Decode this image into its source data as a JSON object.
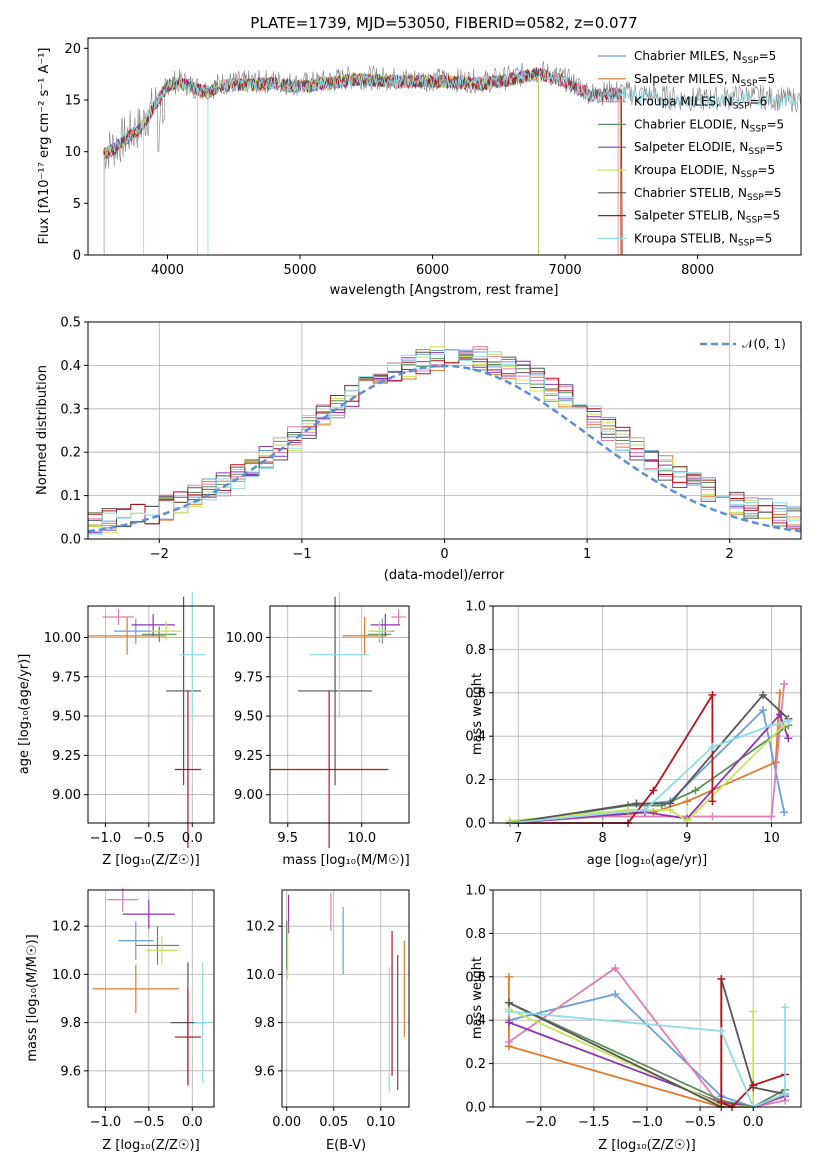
{
  "colors": {
    "chabrier_miles": "#6a9fd8",
    "salpeter_miles": "#e07a2a",
    "kroupa_miles": "#e17cb5",
    "chabrier_elodie": "#5a8f5a",
    "salpeter_elodie": "#8e35b0",
    "kroupa_elodie": "#c5e45a",
    "chabrier_stelib": "#555555",
    "salpeter_stelib": "#b3141c",
    "kroupa_stelib": "#8fdce8",
    "spectrum_grey": "#808080",
    "normal_curve": "#5b8fd6"
  },
  "chart_data": [
    {
      "type": "line",
      "title": "PLATE=1739, MJD=53050, FIBERID=0582, z=0.077",
      "xlabel": "wavelength [Angstrom, rest frame]",
      "ylabel": "Flux [fλ10⁻¹⁷ erg cm⁻² s⁻¹ A⁻¹]",
      "xlim": [
        3400,
        8780
      ],
      "ylim": [
        0,
        21
      ],
      "xticks": [
        "4000",
        "5000",
        "6000",
        "7000",
        "8000"
      ],
      "yticks": [
        "0",
        "5",
        "10",
        "15",
        "20"
      ],
      "legend_position": "right",
      "series": [
        {
          "name": "Chabrier MILES, N_SSP=5"
        },
        {
          "name": "Salpeter MILES, N_SSP=5"
        },
        {
          "name": "Kroupa MILES, N_SSP=6"
        },
        {
          "name": "Chabrier ELODIE, N_SSP=5"
        },
        {
          "name": "Salpeter ELODIE, N_SSP=5"
        },
        {
          "name": "Kroupa ELODIE, N_SSP=5"
        },
        {
          "name": "Chabrier STELIB, N_SSP=5"
        },
        {
          "name": "Salpeter STELIB, N_SSP=5"
        },
        {
          "name": "Kroupa STELIB, N_SSP=5"
        }
      ],
      "continuum": {
        "x": [
          3500,
          3600,
          3700,
          3800,
          3900,
          4000,
          4100,
          4200,
          4300,
          4400,
          4600,
          4800,
          5000,
          5200,
          5400,
          5600,
          5800,
          6000,
          6200,
          6400,
          6600,
          6800,
          7000,
          7200,
          7400,
          7600,
          7800,
          8000,
          8200,
          8400,
          8600,
          8780
        ],
        "y": [
          9.9,
          10.5,
          11.6,
          12.5,
          14.5,
          16.6,
          16.8,
          16.3,
          16.0,
          16.6,
          16.7,
          16.8,
          16.5,
          16.8,
          17.2,
          17.1,
          17.0,
          17.0,
          16.9,
          16.8,
          17.2,
          17.8,
          17.0,
          15.6,
          15.8,
          15.5,
          15.2,
          15.0,
          15.2,
          15.4,
          15.1,
          15.0
        ]
      }
    },
    {
      "type": "line",
      "xlabel": "(data-model)/error",
      "ylabel": "Normed distribution",
      "xlim": [
        -2.5,
        2.5
      ],
      "ylim": [
        0,
        0.5
      ],
      "xticks": [
        "−2",
        "−1",
        "0",
        "1",
        "2"
      ],
      "yticks": [
        "0.0",
        "0.1",
        "0.2",
        "0.3",
        "0.4",
        "0.5"
      ],
      "legend": "𝒩(0, 1)",
      "legend_position": "top-right",
      "bin_width": 0.1,
      "histogram_center": 0.1,
      "histogram_width": 1.02,
      "histogram_floor": 0.02
    },
    {
      "type": "scatter",
      "xlabel": "Z [log₁₀(Z/Z☉)]",
      "ylabel": "age  [log₁₀(age/yr)]",
      "xlim": [
        -1.2,
        0.25
      ],
      "ylim": [
        8.82,
        10.2
      ],
      "xticks": [
        "−1.0",
        "−0.5",
        "0.0"
      ],
      "yticks": [
        "9.00",
        "9.25",
        "9.50",
        "9.75",
        "10.00"
      ],
      "points": [
        {
          "color": "chabrier_miles",
          "x": -0.65,
          "y": 10.04,
          "xerr": 0.25,
          "yerr": 0.08
        },
        {
          "color": "salpeter_miles",
          "x": -0.75,
          "y": 10.01,
          "xerr": 0.45,
          "yerr": 0.12
        },
        {
          "color": "kroupa_miles",
          "x": -0.85,
          "y": 10.13,
          "xerr": 0.18,
          "yerr": 0.05
        },
        {
          "color": "chabrier_elodie",
          "x": -0.38,
          "y": 10.02,
          "xerr": 0.2,
          "yerr": 0.05
        },
        {
          "color": "salpeter_elodie",
          "x": -0.45,
          "y": 10.08,
          "xerr": 0.25,
          "yerr": 0.07
        },
        {
          "color": "kroupa_elodie",
          "x": -0.3,
          "y": 10.04,
          "xerr": 0.18,
          "yerr": 0.06
        },
        {
          "color": "chabrier_stelib",
          "x": -0.1,
          "y": 9.66,
          "xerr": 0.2,
          "yerr": 0.6
        },
        {
          "color": "salpeter_stelib",
          "x": -0.05,
          "y": 9.16,
          "xerr": 0.15,
          "yerr": 0.5
        },
        {
          "color": "kroupa_stelib",
          "x": 0.0,
          "y": 9.89,
          "xerr": 0.15,
          "yerr": 0.4
        }
      ]
    },
    {
      "type": "scatter",
      "xlabel": "mass [log₁₀(M/M☉)]",
      "xlim": [
        9.38,
        10.32
      ],
      "ylim": [
        8.82,
        10.2
      ],
      "xticks": [
        "9.5",
        "10.0"
      ],
      "yticks": [
        "9.00",
        "9.25",
        "9.50",
        "9.75",
        "10.00"
      ],
      "points": [
        {
          "color": "chabrier_miles",
          "x": 10.14,
          "y": 10.04,
          "xerr": 0.08,
          "yerr": 0.08
        },
        {
          "color": "salpeter_miles",
          "x": 10.02,
          "y": 10.01,
          "xerr": 0.15,
          "yerr": 0.12
        },
        {
          "color": "kroupa_miles",
          "x": 10.25,
          "y": 10.13,
          "xerr": 0.05,
          "yerr": 0.05
        },
        {
          "color": "chabrier_elodie",
          "x": 10.12,
          "y": 10.02,
          "xerr": 0.08,
          "yerr": 0.05
        },
        {
          "color": "salpeter_elodie",
          "x": 10.16,
          "y": 10.08,
          "xerr": 0.1,
          "yerr": 0.07
        },
        {
          "color": "kroupa_elodie",
          "x": 10.12,
          "y": 10.04,
          "xerr": 0.08,
          "yerr": 0.06
        },
        {
          "color": "chabrier_stelib",
          "x": 9.82,
          "y": 9.66,
          "xerr": 0.25,
          "yerr": 0.6
        },
        {
          "color": "salpeter_stelib",
          "x": 9.78,
          "y": 9.16,
          "xerr": 0.4,
          "yerr": 0.5
        },
        {
          "color": "kroupa_stelib",
          "x": 9.85,
          "y": 9.89,
          "xerr": 0.2,
          "yerr": 0.4
        }
      ]
    },
    {
      "type": "line",
      "xlabel": "age  [log₁₀(age/yr)]",
      "ylabel": "mass weight",
      "xlim": [
        6.7,
        10.35
      ],
      "ylim": [
        0,
        1
      ],
      "xticks": [
        "7",
        "8",
        "9",
        "10"
      ],
      "yticks": [
        "0.0",
        "0.2",
        "0.4",
        "0.6",
        "0.8",
        "1.0"
      ],
      "series": [
        {
          "color": "chabrier_miles",
          "x": [
            6.9,
            8.3,
            8.8,
            9.9,
            10.15
          ],
          "y": [
            0.0,
            0.08,
            0.1,
            0.52,
            0.05
          ]
        },
        {
          "color": "salpeter_miles",
          "x": [
            6.9,
            8.6,
            9.0,
            10.05,
            10.1
          ],
          "y": [
            0.0,
            0.05,
            0.1,
            0.28,
            0.6
          ]
        },
        {
          "color": "kroupa_miles",
          "x": [
            6.9,
            8.0,
            9.3,
            10.0,
            10.15
          ],
          "y": [
            0.0,
            0.03,
            0.03,
            0.03,
            0.64
          ]
        },
        {
          "color": "chabrier_elodie",
          "x": [
            6.9,
            8.3,
            8.7,
            9.1,
            10.2
          ],
          "y": [
            0.0,
            0.08,
            0.08,
            0.15,
            0.45
          ]
        },
        {
          "color": "salpeter_elodie",
          "x": [
            6.9,
            8.5,
            9.0,
            10.1,
            10.2
          ],
          "y": [
            0.0,
            0.05,
            0.02,
            0.5,
            0.39
          ]
        },
        {
          "color": "kroupa_elodie",
          "x": [
            6.9,
            8.3,
            8.8,
            9.0,
            10.15
          ],
          "y": [
            0.01,
            0.06,
            0.06,
            0.01,
            0.45
          ]
        },
        {
          "color": "chabrier_stelib",
          "x": [
            6.9,
            8.4,
            8.8,
            9.9,
            10.2
          ],
          "y": [
            0.0,
            0.09,
            0.09,
            0.59,
            0.48
          ]
        },
        {
          "color": "salpeter_stelib",
          "x": [
            6.9,
            8.3,
            8.6,
            9.3,
            9.3
          ],
          "y": [
            0.0,
            0.0,
            0.15,
            0.59,
            0.1
          ]
        },
        {
          "color": "kroupa_stelib",
          "x": [
            6.9,
            8.5,
            9.3,
            10.0,
            10.2
          ],
          "y": [
            0.0,
            0.06,
            0.35,
            0.45,
            0.47
          ]
        }
      ]
    },
    {
      "type": "scatter",
      "xlabel": "Z [log₁₀(Z/Z☉)]",
      "ylabel": "mass [log₁₀(M/M☉)]",
      "xlim": [
        -1.2,
        0.25
      ],
      "ylim": [
        9.45,
        10.35
      ],
      "xticks": [
        "−1.0",
        "−0.5",
        "0.0"
      ],
      "yticks": [
        "9.6",
        "9.8",
        "10.0",
        "10.2"
      ],
      "points": [
        {
          "color": "chabrier_miles",
          "x": -0.65,
          "y": 10.14,
          "xerr": 0.2,
          "yerr": 0.08
        },
        {
          "color": "salpeter_miles",
          "x": -0.65,
          "y": 9.94,
          "xerr": 0.5,
          "yerr": 0.1
        },
        {
          "color": "kroupa_miles",
          "x": -0.8,
          "y": 10.31,
          "xerr": 0.18,
          "yerr": 0.05
        },
        {
          "color": "chabrier_elodie",
          "x": -0.4,
          "y": 10.12,
          "xerr": 0.25,
          "yerr": 0.08
        },
        {
          "color": "salpeter_elodie",
          "x": -0.5,
          "y": 10.25,
          "xerr": 0.3,
          "yerr": 0.06
        },
        {
          "color": "kroupa_elodie",
          "x": -0.35,
          "y": 10.1,
          "xerr": 0.18,
          "yerr": 0.06
        },
        {
          "color": "chabrier_stelib",
          "x": -0.05,
          "y": 9.8,
          "xerr": 0.2,
          "yerr": 0.25
        },
        {
          "color": "salpeter_stelib",
          "x": -0.05,
          "y": 9.74,
          "xerr": 0.15,
          "yerr": 0.2
        },
        {
          "color": "kroupa_stelib",
          "x": 0.12,
          "y": 9.8,
          "xerr": 0.1,
          "yerr": 0.25
        }
      ]
    },
    {
      "type": "scatter",
      "xlabel": "E(B-V)",
      "xlim": [
        -0.005,
        0.13
      ],
      "ylim": [
        9.45,
        10.35
      ],
      "xticks": [
        "0.00",
        "0.05",
        "0.10"
      ],
      "yticks": [
        "9.6",
        "9.8",
        "10.0",
        "10.2"
      ],
      "points": [
        {
          "color": "chabrier_miles",
          "x": 0.06,
          "y": 10.14,
          "yerr": 0.14
        },
        {
          "color": "salpeter_miles",
          "x": 0.125,
          "y": 9.94,
          "yerr": 0.2
        },
        {
          "color": "kroupa_miles",
          "x": 0.047,
          "y": 10.26,
          "yerr": 0.08
        },
        {
          "color": "chabrier_elodie",
          "x": 0.0,
          "y": 10.12,
          "yerr": 0.1
        },
        {
          "color": "salpeter_elodie",
          "x": 0.002,
          "y": 10.25,
          "yerr": 0.08
        },
        {
          "color": "kroupa_elodie",
          "x": 0.001,
          "y": 10.1,
          "yerr": 0.12
        },
        {
          "color": "chabrier_stelib",
          "x": 0.118,
          "y": 9.8,
          "yerr": 0.28
        },
        {
          "color": "salpeter_stelib",
          "x": 0.112,
          "y": 9.88,
          "yerr": 0.3
        },
        {
          "color": "kroupa_stelib",
          "x": 0.109,
          "y": 9.77,
          "yerr": 0.26
        }
      ]
    },
    {
      "type": "line",
      "xlabel": "Z [log₁₀(Z/Z☉)]",
      "ylabel": "mass weight",
      "xlim": [
        -2.45,
        0.45
      ],
      "ylim": [
        0,
        1
      ],
      "xticks": [
        "−2.0",
        "−1.5",
        "−1.0",
        "−0.5",
        "0.0"
      ],
      "yticks": [
        "0.0",
        "0.2",
        "0.4",
        "0.6",
        "0.8",
        "1.0"
      ],
      "series": [
        {
          "color": "chabrier_miles",
          "x": [
            -2.3,
            -1.3,
            -0.3,
            0.0,
            0.3
          ],
          "y": [
            0.4,
            0.52,
            0.05,
            0.0,
            0.06
          ]
        },
        {
          "color": "salpeter_miles",
          "x": [
            -2.3,
            -2.3,
            -0.3,
            0.0,
            0.3
          ],
          "y": [
            0.6,
            0.28,
            0.0,
            0.0,
            0.06
          ]
        },
        {
          "color": "kroupa_miles",
          "x": [
            -2.3,
            -1.3,
            -0.3,
            0.0,
            0.3
          ],
          "y": [
            0.3,
            0.64,
            0.0,
            0.0,
            0.03
          ]
        },
        {
          "color": "chabrier_elodie",
          "x": [
            -2.3,
            -0.3,
            0.0,
            0.3
          ],
          "y": [
            0.48,
            0.03,
            0.0,
            0.08
          ]
        },
        {
          "color": "salpeter_elodie",
          "x": [
            -2.3,
            -0.3,
            0.0,
            0.3
          ],
          "y": [
            0.39,
            0.02,
            0.0,
            0.05
          ]
        },
        {
          "color": "kroupa_elodie",
          "x": [
            -2.3,
            -0.3,
            0.0,
            0.0
          ],
          "y": [
            0.45,
            0.01,
            0.0,
            0.44
          ]
        },
        {
          "color": "chabrier_stelib",
          "x": [
            -2.3,
            -0.3,
            -0.3,
            0.0,
            0.3
          ],
          "y": [
            0.48,
            0.0,
            0.59,
            0.09,
            0.06
          ]
        },
        {
          "color": "salpeter_stelib",
          "x": [
            -0.3,
            -0.3,
            -0.2,
            0.0,
            0.3
          ],
          "y": [
            0.59,
            0.02,
            0.0,
            0.1,
            0.15
          ]
        },
        {
          "color": "kroupa_stelib",
          "x": [
            -2.3,
            -0.3,
            0.0,
            0.3,
            0.3
          ],
          "y": [
            0.44,
            0.35,
            0.0,
            0.06,
            0.46
          ]
        }
      ]
    }
  ]
}
